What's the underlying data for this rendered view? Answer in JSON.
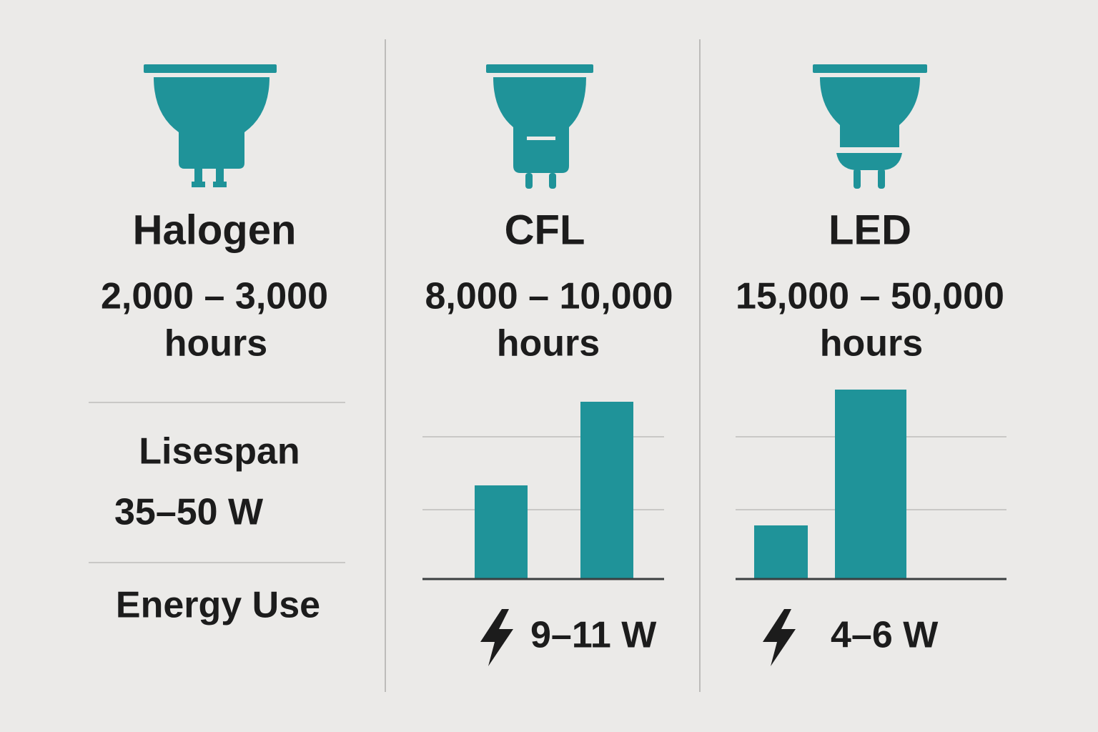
{
  "columns": [
    {
      "name": "Halogen",
      "lifespan": "2,000 – 3,000",
      "unit": "hours",
      "energy": "35–50 W"
    },
    {
      "name": "CFL",
      "lifespan": "8,000 – 10,000",
      "unit": "hours",
      "energy": "9–11 W"
    },
    {
      "name": "LED",
      "lifespan": "15,000 – 50,000",
      "unit": "hours",
      "energy": "4–6 W"
    }
  ],
  "labels": {
    "lifespan": "Lisespan",
    "energy": "Energy Use"
  }
}
